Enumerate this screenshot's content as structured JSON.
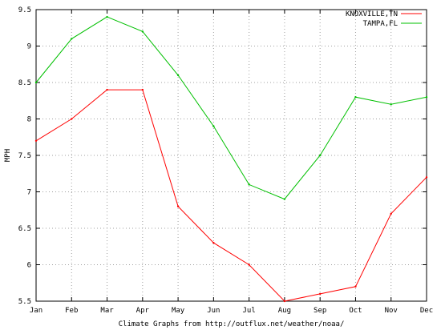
{
  "chart_data": {
    "type": "line",
    "categories": [
      "Jan",
      "Feb",
      "Mar",
      "Apr",
      "May",
      "Jun",
      "Jul",
      "Aug",
      "Sep",
      "Oct",
      "Nov",
      "Dec"
    ],
    "series": [
      {
        "name": "KNOXVILLE,TN",
        "color": "#ff0000",
        "values": [
          7.7,
          8.0,
          8.4,
          8.4,
          6.8,
          6.3,
          6.0,
          5.5,
          5.6,
          5.7,
          6.7,
          7.2
        ]
      },
      {
        "name": "TAMPA,FL",
        "color": "#00c000",
        "values": [
          8.5,
          9.1,
          9.4,
          9.2,
          8.6,
          7.9,
          7.1,
          6.9,
          7.5,
          8.3,
          8.2,
          8.3
        ]
      }
    ],
    "ylabel": "MPH",
    "xlabel": "Climate Graphs from http://outflux.net/weather/noaa/",
    "ylim": [
      5.5,
      9.5
    ],
    "yticks": [
      "5.5",
      "6",
      "6.5",
      "7",
      "7.5",
      "8",
      "8.5",
      "9",
      "9.5"
    ],
    "grid": true,
    "legend_position": "top-right"
  }
}
